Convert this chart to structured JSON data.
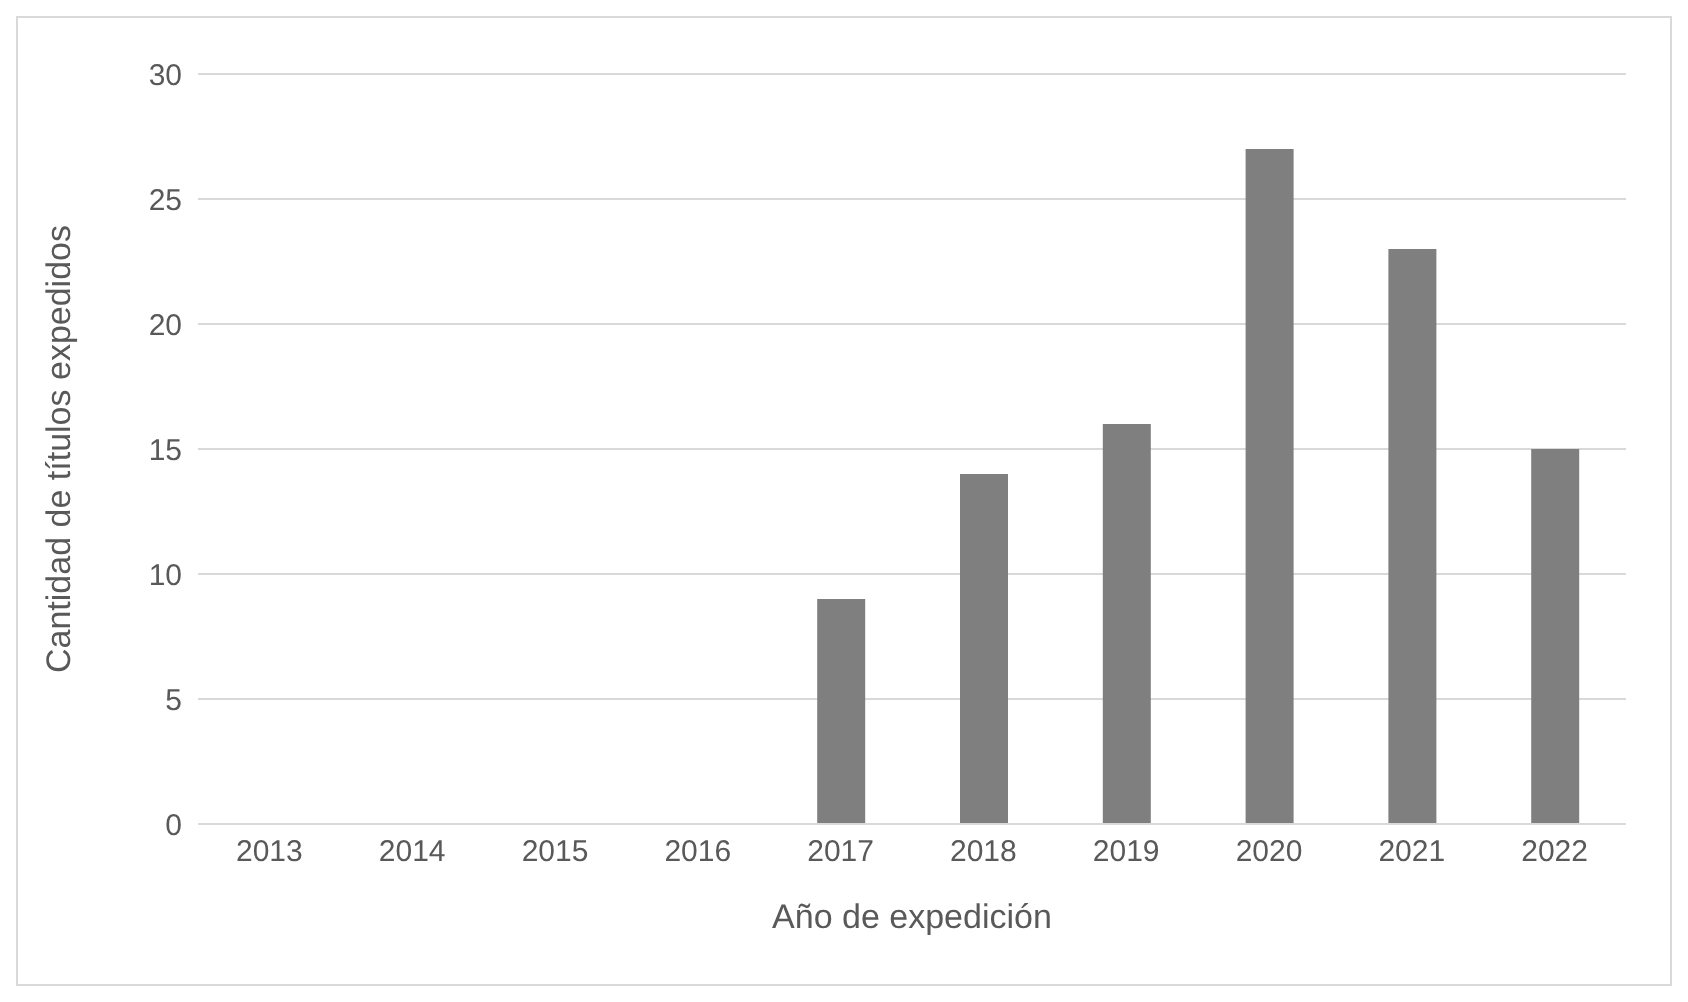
{
  "chart_data": {
    "type": "bar",
    "xlabel": "Año de expedición",
    "ylabel": "Cantidad de títulos expedidos",
    "categories": [
      "2013",
      "2014",
      "2015",
      "2016",
      "2017",
      "2018",
      "2019",
      "2020",
      "2021",
      "2022"
    ],
    "values": [
      0,
      0,
      0,
      0,
      9,
      14,
      16,
      27,
      23,
      15
    ],
    "color": "#7f7f7f",
    "ylim": [
      0,
      30
    ],
    "yticks": [
      0,
      5,
      10,
      15,
      20,
      25,
      30
    ],
    "grid": "y"
  }
}
